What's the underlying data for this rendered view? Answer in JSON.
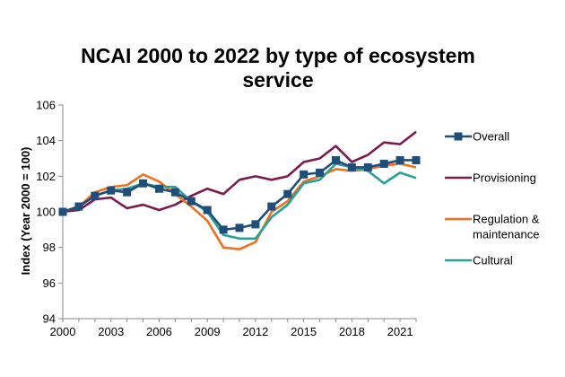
{
  "chart_data": {
    "type": "line",
    "title_lines": [
      "NCAI 2000 to 2022 by type of ecosystem",
      "service"
    ],
    "xlabel": "",
    "ylabel": "Index (Year 2000 = 100)",
    "x": [
      2000,
      2001,
      2002,
      2003,
      2004,
      2005,
      2006,
      2007,
      2008,
      2009,
      2010,
      2011,
      2012,
      2013,
      2014,
      2015,
      2016,
      2017,
      2018,
      2019,
      2020,
      2021,
      2022
    ],
    "x_tick_labels": [
      "2000",
      "2003",
      "2006",
      "2009",
      "2012",
      "2015",
      "2018",
      "2021"
    ],
    "x_tick_values": [
      2000,
      2003,
      2006,
      2009,
      2012,
      2015,
      2018,
      2021
    ],
    "xlim": [
      2000,
      2022
    ],
    "ylim": [
      94,
      106
    ],
    "y_ticks": [
      94,
      96,
      98,
      100,
      102,
      104,
      106
    ],
    "grid": false,
    "legend_position": "right",
    "series": [
      {
        "name": "Overall",
        "color": "#1f4e79",
        "marker": "square",
        "values": [
          100.0,
          100.3,
          100.9,
          101.2,
          101.1,
          101.6,
          101.3,
          101.1,
          100.6,
          100.1,
          99.0,
          99.1,
          99.3,
          100.3,
          101.0,
          102.1,
          102.2,
          102.9,
          102.5,
          102.5,
          102.7,
          102.9,
          102.9
        ]
      },
      {
        "name": "Provisioning",
        "color": "#7b1a4f",
        "marker": "none",
        "values": [
          100.0,
          100.1,
          100.7,
          100.8,
          100.2,
          100.4,
          100.1,
          100.4,
          100.9,
          101.3,
          101.0,
          101.8,
          102.0,
          101.8,
          102.0,
          102.8,
          103.0,
          103.7,
          102.8,
          103.2,
          103.9,
          103.8,
          104.5
        ]
      },
      {
        "name": "Regulation & maintenance",
        "label_lines": [
          "Regulation &",
          "maintenance"
        ],
        "color": "#f07020",
        "marker": "none",
        "values": [
          100.0,
          100.3,
          101.1,
          101.4,
          101.5,
          102.1,
          101.7,
          101.0,
          100.3,
          99.5,
          98.0,
          97.9,
          98.3,
          100.0,
          100.6,
          101.7,
          102.0,
          102.4,
          102.3,
          102.4,
          102.6,
          102.7,
          102.5
        ]
      },
      {
        "name": "Cultural",
        "color": "#2aa198",
        "marker": "none",
        "values": [
          100.0,
          100.3,
          100.9,
          101.2,
          101.3,
          101.6,
          101.4,
          101.4,
          100.6,
          100.0,
          98.7,
          98.5,
          98.5,
          99.7,
          100.4,
          101.6,
          101.8,
          102.7,
          102.5,
          102.3,
          101.6,
          102.2,
          101.9
        ]
      }
    ]
  }
}
